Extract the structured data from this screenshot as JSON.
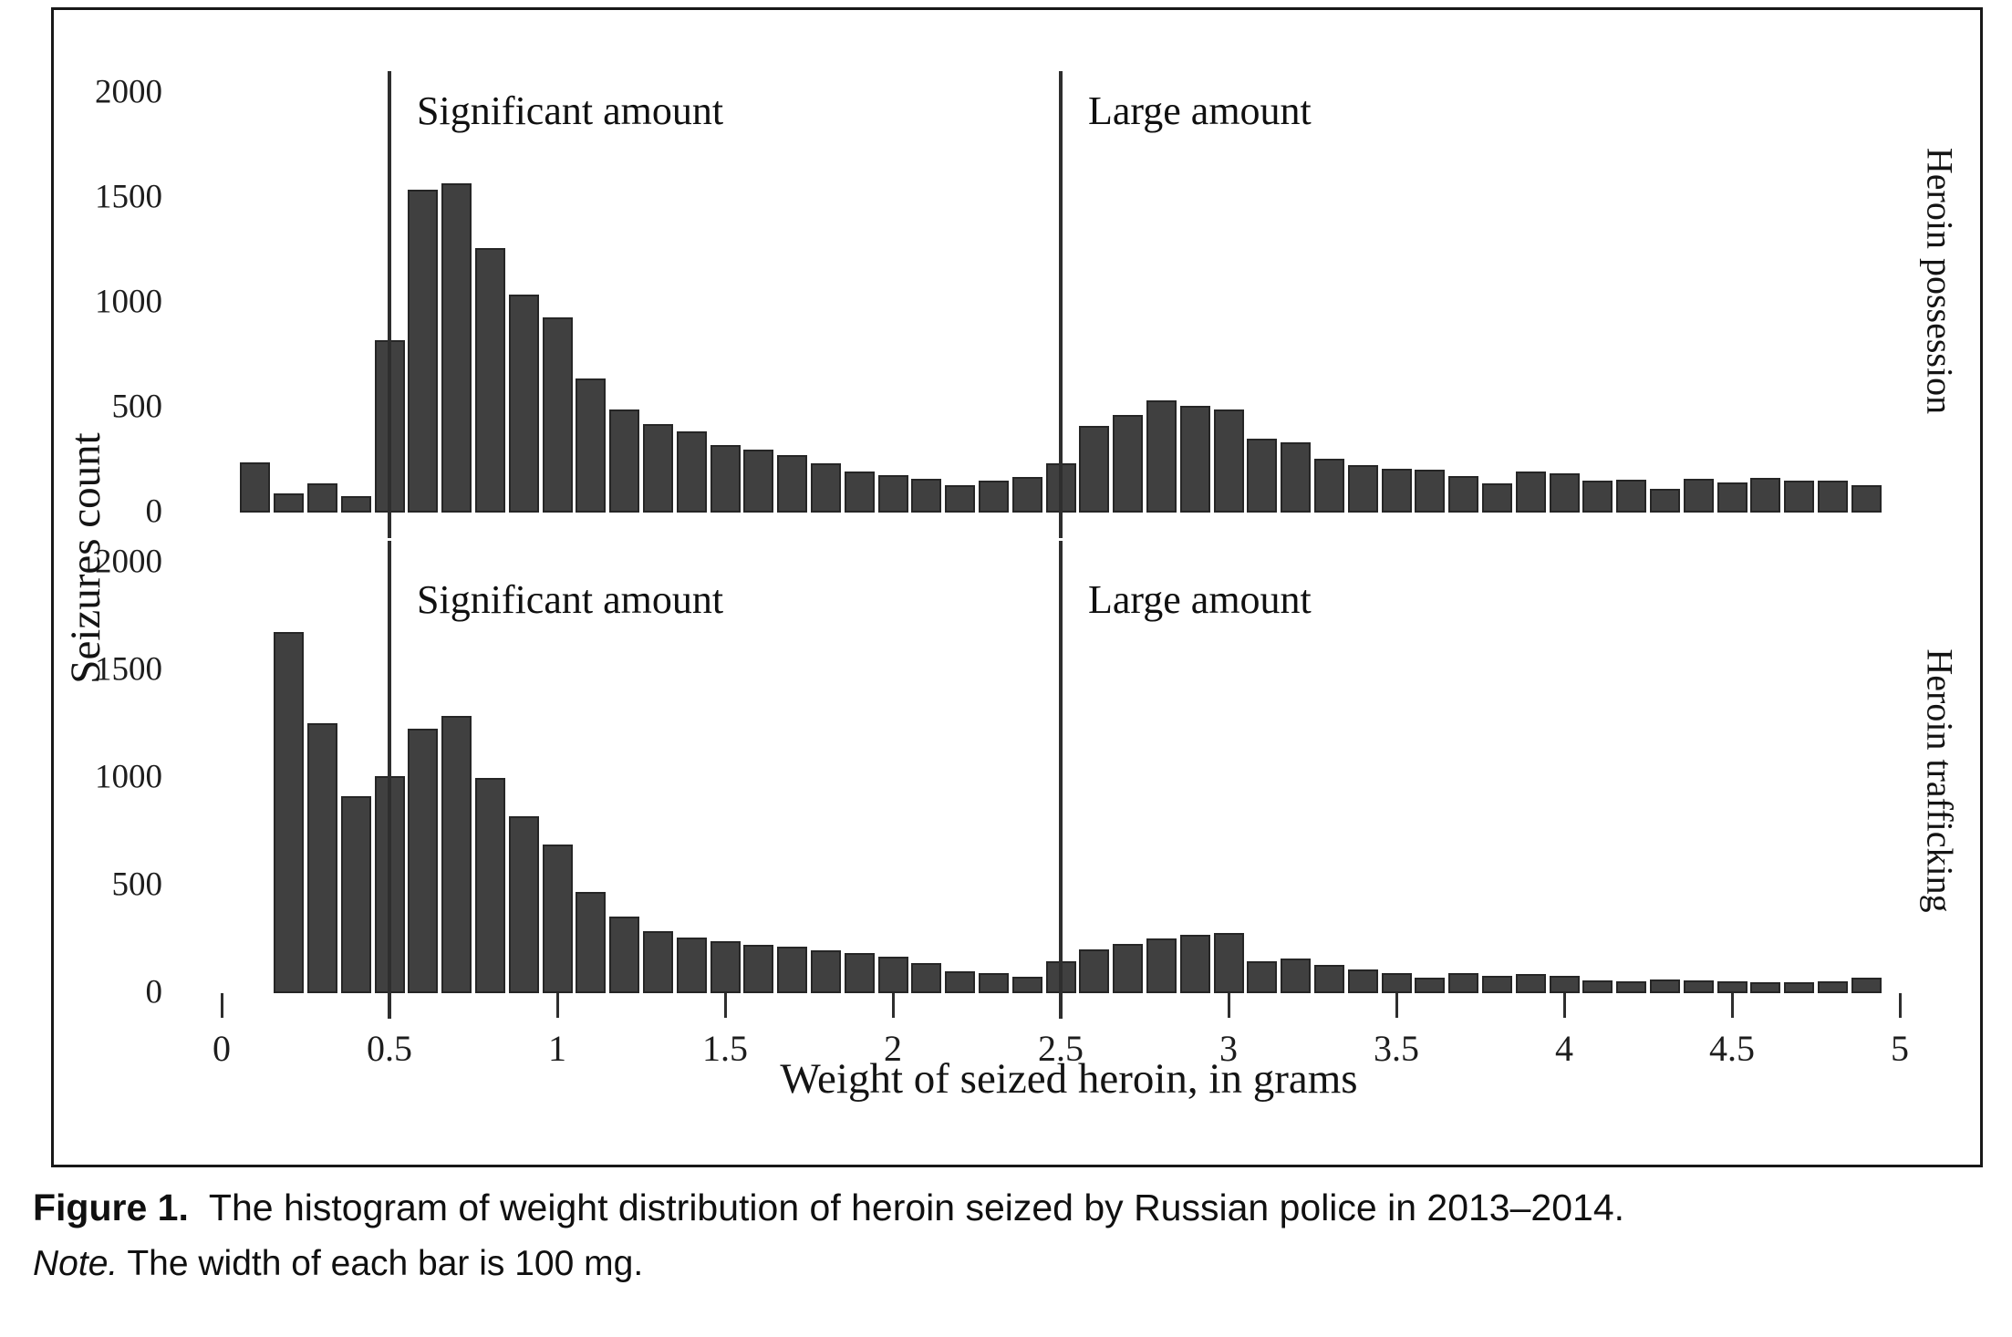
{
  "figure": {
    "caption_label": "Figure 1.",
    "caption_text": "The histogram of weight distribution of heroin seized by Russian police in 2013–2014.",
    "note_label": "Note.",
    "note_text": "The width of each bar is 100 mg."
  },
  "colors": {
    "bar_fill": "#404040",
    "bar_stroke": "#262626",
    "annotation_line": "#2e2e2e",
    "text": "#141414"
  },
  "chart_data": {
    "type": "bar",
    "subtype": "histogram",
    "title": "",
    "xlabel": "Weight of seized heroin, in grams",
    "ylabel": "Seizures count",
    "bin_width_grams": 0.1,
    "xlim": [
      0,
      5
    ],
    "ylim": [
      0,
      2100
    ],
    "grid": false,
    "legend": "none",
    "x_ticks": [
      0,
      0.5,
      1,
      1.5,
      2,
      2.5,
      3,
      3.5,
      4,
      4.5,
      5
    ],
    "x_tick_labels": [
      "0",
      "0.5",
      "1",
      "1.5",
      "2",
      "2.5",
      "3",
      "3.5",
      "4",
      "4.5",
      "5"
    ],
    "y_ticks": [
      0,
      500,
      1000,
      1500,
      2000
    ],
    "y_tick_labels": [
      "0",
      "500",
      "1000",
      "1500",
      "2000"
    ],
    "annotations": [
      {
        "label": "Significant amount",
        "x": 0.5
      },
      {
        "label": "Large amount",
        "x": 2.5
      }
    ],
    "panels": [
      {
        "strip_label": "Heroin possession",
        "bin_centers": [
          0.1,
          0.2,
          0.3,
          0.4,
          0.5,
          0.6,
          0.7,
          0.8,
          0.9,
          1.0,
          1.1,
          1.2,
          1.3,
          1.4,
          1.5,
          1.6,
          1.7,
          1.8,
          1.9,
          2.0,
          2.1,
          2.2,
          2.3,
          2.4,
          2.5,
          2.6,
          2.7,
          2.8,
          2.9,
          3.0,
          3.1,
          3.2,
          3.3,
          3.4,
          3.5,
          3.6,
          3.7,
          3.8,
          3.9,
          4.0,
          4.1,
          4.2,
          4.3,
          4.4,
          4.5,
          4.6,
          4.7,
          4.8,
          4.9
        ],
        "values": [
          240,
          90,
          140,
          80,
          820,
          1540,
          1570,
          1260,
          1040,
          930,
          640,
          490,
          420,
          385,
          320,
          300,
          275,
          235,
          195,
          180,
          160,
          130,
          150,
          170,
          235,
          415,
          465,
          535,
          510,
          490,
          350,
          335,
          255,
          225,
          210,
          205,
          175,
          140,
          195,
          185,
          150,
          155,
          115,
          160,
          145,
          165,
          150,
          150,
          130
        ]
      },
      {
        "strip_label": "Heroin trafficking",
        "bin_centers": [
          0.2,
          0.3,
          0.4,
          0.5,
          0.6,
          0.7,
          0.8,
          0.9,
          1.0,
          1.1,
          1.2,
          1.3,
          1.4,
          1.5,
          1.6,
          1.7,
          1.8,
          1.9,
          2.0,
          2.1,
          2.2,
          2.3,
          2.4,
          2.5,
          2.6,
          2.7,
          2.8,
          2.9,
          3.0,
          3.1,
          3.2,
          3.3,
          3.4,
          3.5,
          3.6,
          3.7,
          3.8,
          3.9,
          4.0,
          4.1,
          4.2,
          4.3,
          4.4,
          4.5,
          4.6,
          4.7,
          4.8,
          4.9
        ],
        "values": [
          1680,
          1255,
          915,
          1010,
          1230,
          1290,
          1000,
          820,
          690,
          470,
          355,
          290,
          260,
          240,
          225,
          215,
          200,
          185,
          170,
          140,
          100,
          95,
          75,
          150,
          205,
          230,
          255,
          270,
          280,
          150,
          160,
          130,
          110,
          95,
          70,
          95,
          80,
          90,
          80,
          60,
          55,
          65,
          60,
          55,
          50,
          52,
          55,
          70
        ]
      }
    ]
  }
}
